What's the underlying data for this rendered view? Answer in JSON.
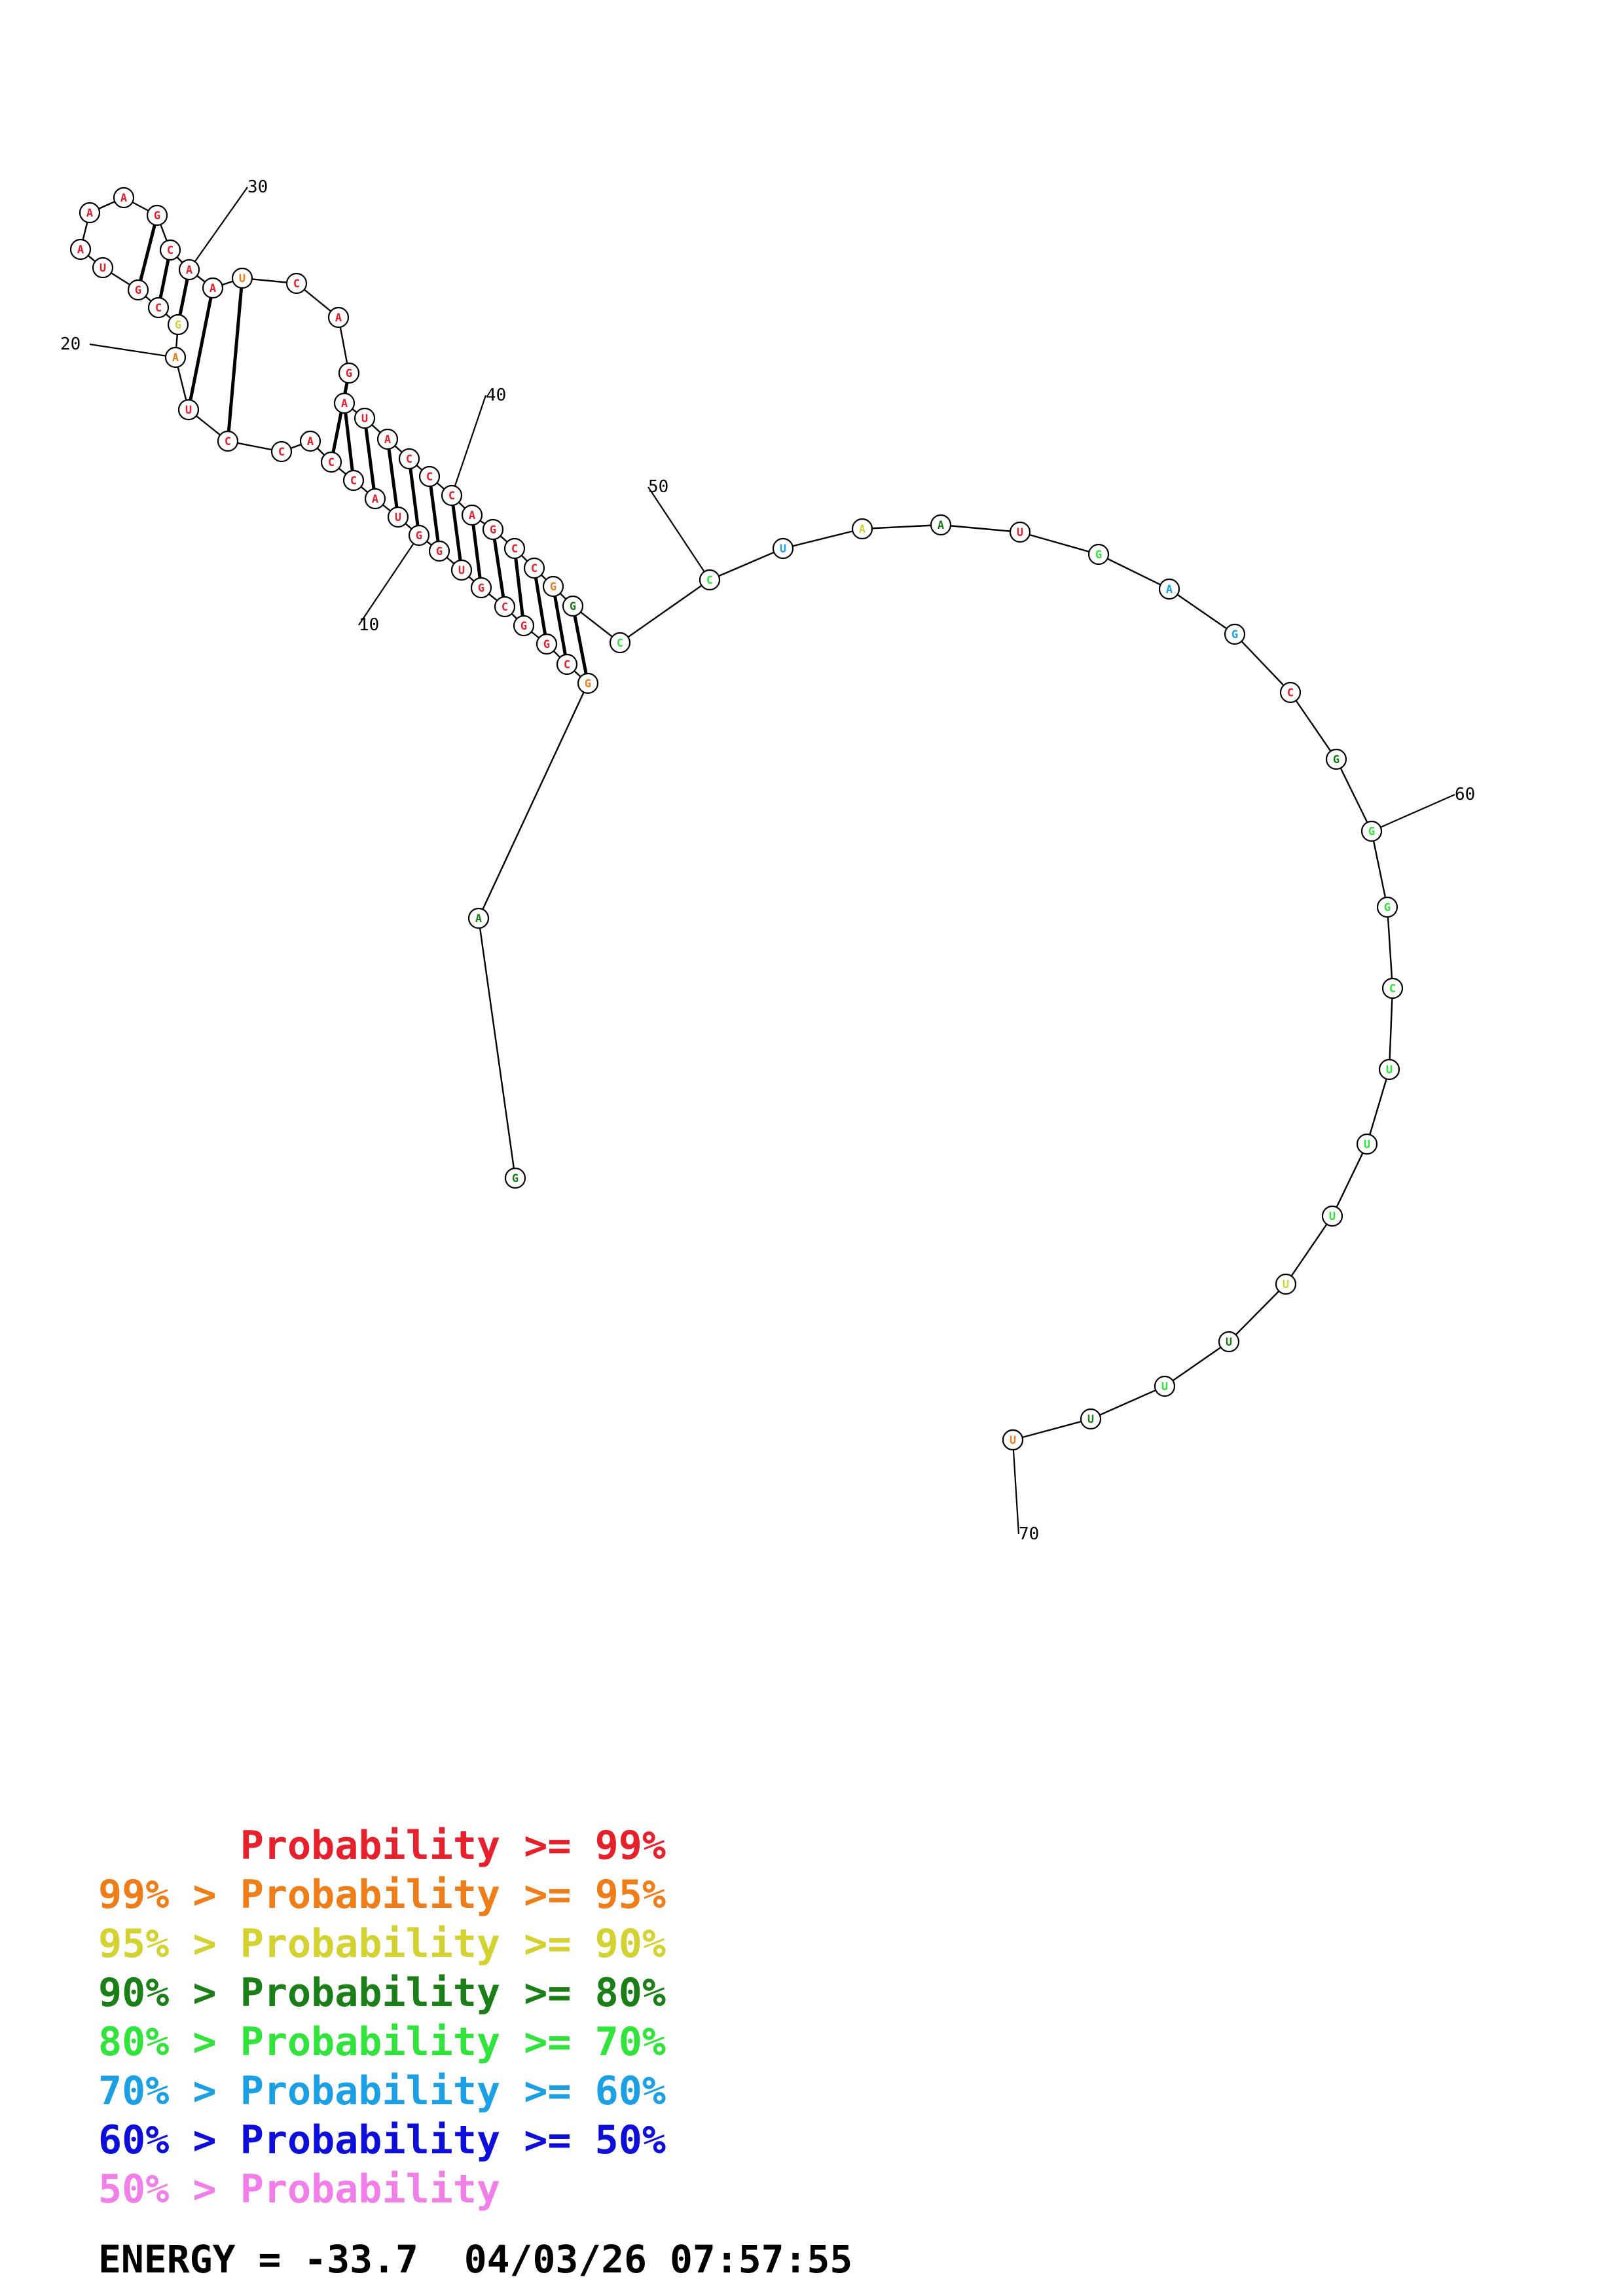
{
  "structure": {
    "sequence": [
      "G",
      "A",
      "G",
      "C",
      "G",
      "G",
      "C",
      "G",
      "U",
      "G",
      "G",
      "U",
      "A",
      "C",
      "C",
      "A",
      "C",
      "C",
      "U",
      "A",
      "G",
      "C",
      "G",
      "U",
      "A",
      "A",
      "A",
      "G",
      "C",
      "A",
      "A",
      "U",
      "C",
      "A",
      "G",
      "A",
      "U",
      "A",
      "C",
      "C",
      "C",
      "A",
      "G",
      "C",
      "C",
      "G",
      "G",
      "C",
      "C",
      "U",
      "A",
      "A",
      "U",
      "G",
      "A",
      "G",
      "C",
      "G",
      "G",
      "G",
      "C",
      "U",
      "U",
      "U",
      "U",
      "U",
      "U",
      "U",
      "U",
      "U"
    ],
    "probability_class": [
      3,
      3,
      1,
      0,
      0,
      0,
      0,
      0,
      0,
      0,
      0,
      0,
      0,
      0,
      0,
      0,
      0,
      0,
      0,
      1,
      2,
      0,
      0,
      0,
      0,
      0,
      0,
      0,
      0,
      0,
      0,
      1,
      0,
      0,
      0,
      0,
      0,
      0,
      0,
      0,
      0,
      0,
      0,
      0,
      0,
      1,
      3,
      4,
      4,
      5,
      2,
      3,
      0,
      4,
      5,
      5,
      0,
      3,
      4,
      4,
      4,
      4,
      4,
      4,
      2,
      3,
      4,
      3,
      2,
      1
    ],
    "base_pairs": [
      [
        3,
        47
      ],
      [
        4,
        46
      ],
      [
        5,
        45
      ],
      [
        6,
        44
      ],
      [
        7,
        43
      ],
      [
        8,
        42
      ],
      [
        9,
        41
      ],
      [
        10,
        40
      ],
      [
        11,
        39
      ],
      [
        12,
        38
      ],
      [
        13,
        37
      ],
      [
        14,
        36
      ],
      [
        15,
        35
      ],
      [
        18,
        32
      ],
      [
        19,
        31
      ],
      [
        21,
        30
      ],
      [
        22,
        29
      ],
      [
        23,
        28
      ]
    ],
    "index_labels": [
      "10",
      "20",
      "30",
      "40",
      "50",
      "60",
      "70"
    ]
  },
  "colors": {
    "classes": [
      "#e8202b",
      "#ef7d18",
      "#d3d231",
      "#1a7f17",
      "#30e43b",
      "#1ba0e6",
      "#0d0ddc",
      "#f27ee9"
    ],
    "backbone": "#000000",
    "node_outline": "#000000"
  },
  "legend": {
    "lines": [
      "      Probability >= 99%",
      "99% > Probability >= 95%",
      "95% > Probability >= 90%",
      "90% > Probability >= 80%",
      "80% > Probability >= 70%",
      "70% > Probability >= 60%",
      "60% > Probability >= 50%",
      "50% > Probability"
    ],
    "energy_text": "ENERGY = -33.7  04/03/26 07:57:55"
  }
}
